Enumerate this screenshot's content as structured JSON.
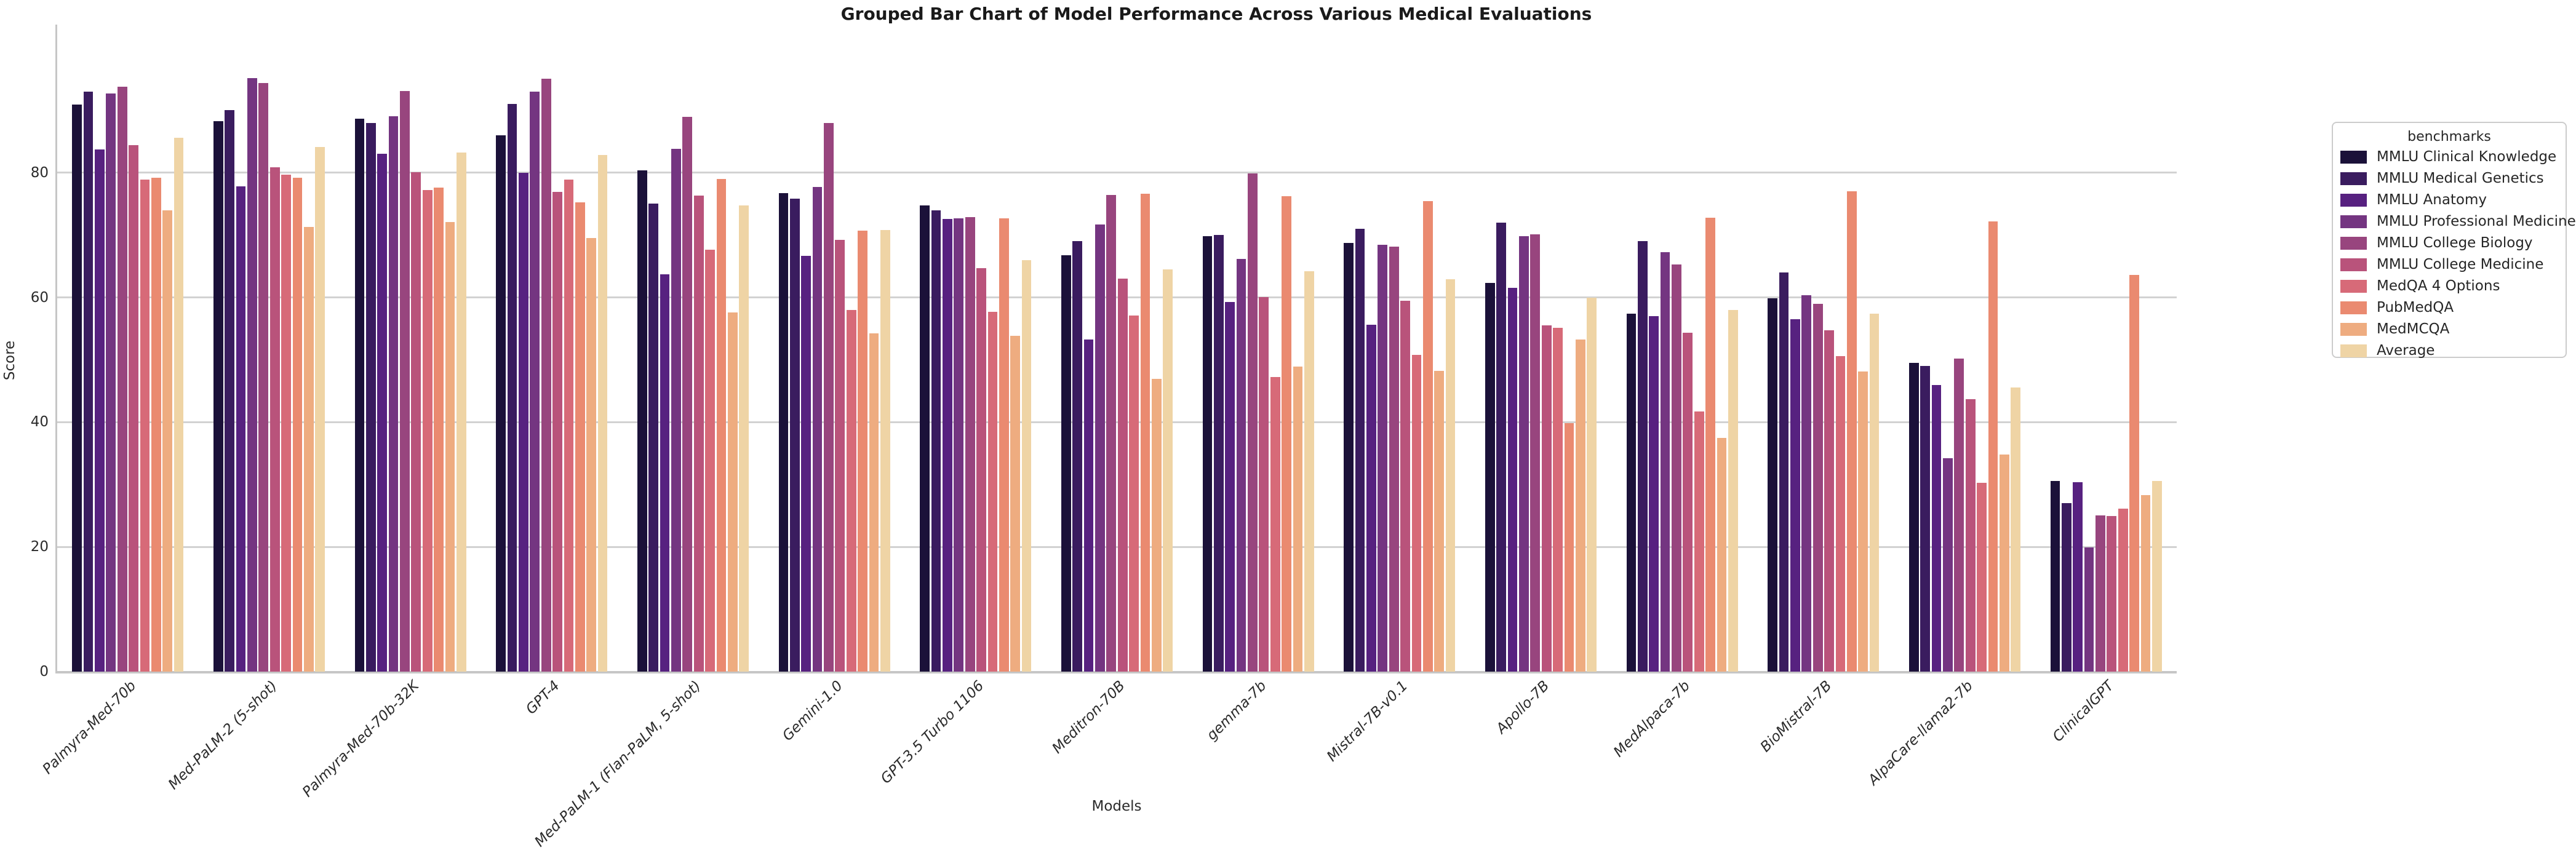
{
  "page": {
    "background": "#ffffff"
  },
  "chart_data": {
    "type": "bar",
    "title": "Grouped Bar Chart of Model Performance Across Various Medical Evaluations",
    "xlabel": "Models",
    "ylabel": "Score",
    "legend_title": "benchmarks",
    "legend_position": "right",
    "grid": true,
    "ylim": [
      0,
      100
    ],
    "yticks": [
      0,
      20,
      40,
      60,
      80
    ],
    "categories": [
      "Palmyra-Med-70b",
      "Med-PaLM-2 (5-shot)",
      "Palmyra-Med-70b-32K",
      "GPT-4",
      "Med-PaLM-1 (Flan-PaLM, 5-shot)",
      "Gemini-1.0",
      "GPT-3.5 Turbo 1106",
      "Meditron-70B",
      "gemma-7b",
      "Mistral-7B-v0.1",
      "Apollo-7B",
      "MedAlpaca-7b",
      "BioMistral-7B",
      "AlpaCare-llama2-7b",
      "ClinicalGPT"
    ],
    "series": [
      {
        "name": "MMLU Clinical Knowledge",
        "color": "#1b1139",
        "values": [
          90.9,
          88.3,
          88.7,
          86.0,
          80.4,
          76.7,
          74.7,
          66.8,
          69.8,
          68.7,
          62.3,
          57.4,
          59.9,
          49.5,
          30.6
        ]
      },
      {
        "name": "MMLU Medical Genetics",
        "color": "#3a1c5f",
        "values": [
          93.0,
          90.0,
          88.0,
          91.0,
          75.0,
          75.8,
          74.0,
          69.0,
          70.0,
          71.0,
          72.0,
          69.0,
          64.0,
          49.0,
          27.0
        ]
      },
      {
        "name": "MMLU Anatomy",
        "color": "#572180",
        "values": [
          83.7,
          77.8,
          83.0,
          80.0,
          63.7,
          66.7,
          72.6,
          53.3,
          59.3,
          55.6,
          61.5,
          57.0,
          56.5,
          46.0,
          30.4
        ]
      },
      {
        "name": "MMLU Professional Medicine",
        "color": "#743581",
        "values": [
          92.7,
          95.2,
          89.0,
          93.0,
          83.8,
          77.7,
          72.7,
          71.7,
          66.2,
          68.4,
          69.8,
          67.3,
          60.4,
          34.2,
          19.9
        ]
      },
      {
        "name": "MMLU College Biology",
        "color": "#98457e",
        "values": [
          93.8,
          94.4,
          93.1,
          95.1,
          88.9,
          88.0,
          72.9,
          76.4,
          79.9,
          68.1,
          70.1,
          65.3,
          59.0,
          50.2,
          25.0
        ]
      },
      {
        "name": "MMLU College Medicine",
        "color": "#b9537b",
        "values": [
          84.4,
          80.9,
          80.1,
          76.9,
          76.3,
          69.2,
          64.7,
          63.0,
          60.1,
          59.5,
          55.5,
          54.3,
          54.7,
          43.7,
          24.9
        ]
      },
      {
        "name": "MedQA 4 Options",
        "color": "#d76a78",
        "values": [
          78.9,
          79.7,
          77.2,
          78.9,
          67.6,
          58.0,
          57.7,
          57.1,
          47.2,
          50.8,
          55.1,
          41.7,
          50.6,
          30.3,
          26.1
        ]
      },
      {
        "name": "PubMedQA",
        "color": "#ea8a70",
        "values": [
          79.2,
          79.2,
          77.6,
          75.2,
          79.0,
          70.7,
          72.7,
          76.6,
          76.2,
          75.4,
          39.8,
          72.8,
          77.0,
          72.2,
          63.6
        ]
      },
      {
        "name": "MedMCQA",
        "color": "#eeac80",
        "values": [
          74.0,
          71.3,
          72.1,
          69.5,
          57.6,
          54.2,
          53.8,
          46.9,
          48.9,
          48.2,
          53.3,
          37.5,
          48.1,
          34.8,
          28.3
        ]
      },
      {
        "name": "Average",
        "color": "#efd4a5",
        "values": [
          85.6,
          84.1,
          83.2,
          82.8,
          74.7,
          70.8,
          66.0,
          64.5,
          64.2,
          62.9,
          60.0,
          58.0,
          57.4,
          45.6,
          30.6
        ]
      }
    ]
  }
}
